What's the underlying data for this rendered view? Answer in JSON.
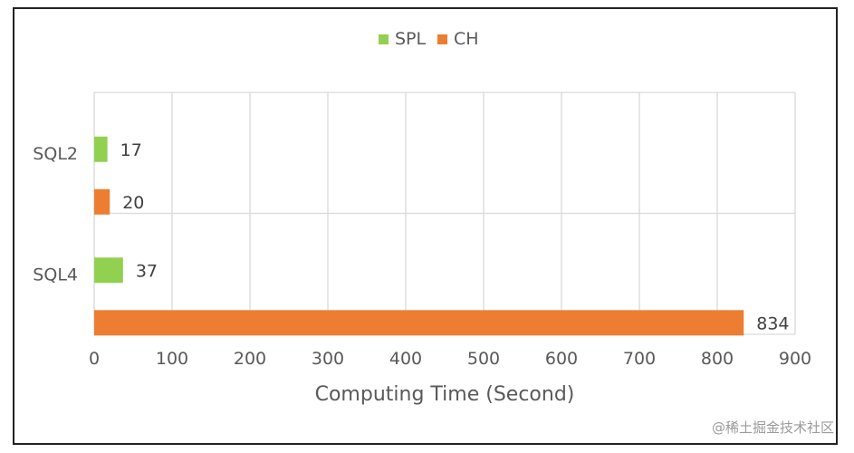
{
  "chart_data": {
    "type": "bar",
    "orientation": "horizontal",
    "categories": [
      "SQL2",
      "SQL4"
    ],
    "series": [
      {
        "name": "SPL",
        "color": "#92d050",
        "values": [
          17,
          37
        ]
      },
      {
        "name": "CH",
        "color": "#ed7d31",
        "values": [
          20,
          834
        ]
      }
    ],
    "xlabel": "Computing Time (Second)",
    "ylabel": "",
    "xlim": [
      0,
      900
    ],
    "xticks": [
      0,
      100,
      200,
      300,
      400,
      500,
      600,
      700,
      800,
      900
    ],
    "grid": true,
    "legend_position": "top-center",
    "data_labels": true
  },
  "watermark": "@稀土掘金技术社区"
}
